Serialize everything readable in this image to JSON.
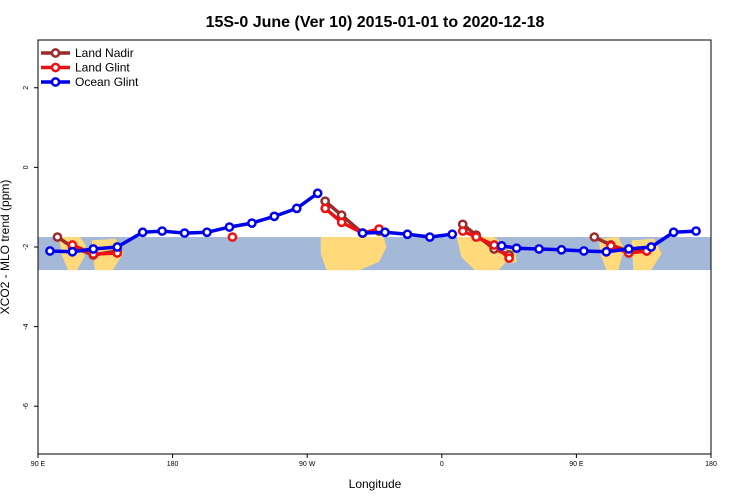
{
  "chart_data": {
    "type": "line",
    "title": "15S-0 June (Ver 10)   2015-01-01 to 2020-12-18",
    "xlabel": "Longitude",
    "ylabel": "XCO2 - MLO trend (ppm)",
    "xlim": [
      90,
      540
    ],
    "ylim": [
      -7.2,
      3.2
    ],
    "xticks": [
      {
        "value": 90,
        "label": "90 E"
      },
      {
        "value": 180,
        "label": "180"
      },
      {
        "value": 270,
        "label": "90 W"
      },
      {
        "value": 360,
        "label": "0"
      },
      {
        "value": 450,
        "label": "90 E"
      },
      {
        "value": 540,
        "label": "180"
      }
    ],
    "yticks": [
      {
        "value": 2,
        "label": "2"
      },
      {
        "value": 0,
        "label": "0"
      },
      {
        "value": -2,
        "label": "-2"
      },
      {
        "value": -4,
        "label": "-4"
      },
      {
        "value": -6,
        "label": "-6"
      }
    ],
    "map_band": {
      "lat_range": "15S-0",
      "y_top": -1.75,
      "y_bottom": -2.58,
      "ocean_color": "#a4b9d8",
      "land_color": "#ffd97a"
    },
    "legend": {
      "position": "top-left"
    },
    "series": [
      {
        "name": "Land Nadir",
        "color": "#9b2a2a",
        "segments": [
          [
            [
              103,
              -1.75
            ],
            [
              113,
              -2.0
            ],
            [
              127,
              -2.2
            ],
            [
              143,
              -2.1
            ]
          ],
          [
            [
              282,
              -0.85
            ],
            [
              293,
              -1.2
            ],
            [
              307,
              -1.65
            ],
            [
              318,
              -1.6
            ]
          ],
          [
            [
              374,
              -1.43
            ],
            [
              383,
              -1.7
            ],
            [
              395,
              -2.05
            ],
            [
              405,
              -2.2
            ]
          ],
          [
            [
              462,
              -1.75
            ],
            [
              473,
              -1.95
            ],
            [
              485,
              -2.1
            ],
            [
              497,
              -2.1
            ]
          ]
        ]
      },
      {
        "name": "Land Glint",
        "color": "#ee1111",
        "segments": [
          [
            [
              113,
              -1.95
            ],
            [
              127,
              -2.18
            ],
            [
              143,
              -2.15
            ]
          ],
          [
            [
              220,
              -1.75
            ]
          ],
          [
            [
              282,
              -1.03
            ],
            [
              293,
              -1.38
            ],
            [
              307,
              -1.65
            ],
            [
              318,
              -1.55
            ]
          ],
          [
            [
              374,
              -1.6
            ],
            [
              383,
              -1.75
            ],
            [
              395,
              -1.95
            ],
            [
              405,
              -2.28
            ]
          ],
          [
            [
              473,
              -1.97
            ],
            [
              485,
              -2.15
            ],
            [
              497,
              -2.1
            ]
          ]
        ]
      },
      {
        "name": "Ocean Glint",
        "color": "#0000ee",
        "segments": [
          [
            [
              98,
              -2.1
            ],
            [
              113,
              -2.12
            ],
            [
              127,
              -2.05
            ],
            [
              143,
              -2.0
            ],
            [
              160,
              -1.63
            ],
            [
              173,
              -1.6
            ],
            [
              188,
              -1.65
            ],
            [
              203,
              -1.63
            ],
            [
              218,
              -1.5
            ],
            [
              233,
              -1.4
            ],
            [
              248,
              -1.23
            ],
            [
              263,
              -1.03
            ],
            [
              277,
              -0.65
            ]
          ],
          [
            [
              307,
              -1.65
            ],
            [
              322,
              -1.63
            ],
            [
              337,
              -1.68
            ],
            [
              352,
              -1.75
            ],
            [
              367,
              -1.68
            ]
          ],
          [
            [
              400,
              -1.97
            ],
            [
              410,
              -2.03
            ],
            [
              425,
              -2.05
            ],
            [
              440,
              -2.07
            ],
            [
              455,
              -2.1
            ],
            [
              470,
              -2.12
            ],
            [
              485,
              -2.05
            ],
            [
              500,
              -2.0
            ],
            [
              515,
              -1.63
            ],
            [
              530,
              -1.6
            ]
          ]
        ]
      }
    ]
  }
}
